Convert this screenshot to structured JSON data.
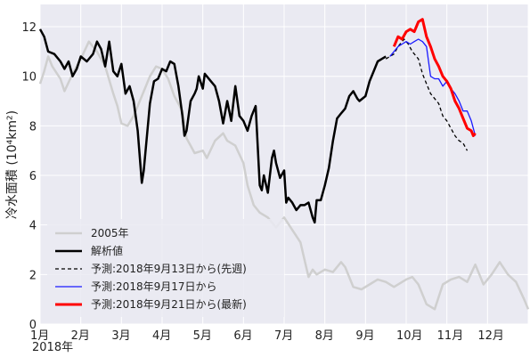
{
  "chart_data": {
    "type": "line",
    "ylabel": "冷水面積 (10⁴km²)",
    "year_label": "2018年",
    "x_ticks": [
      "1月",
      "2月",
      "3月",
      "4月",
      "5月",
      "6月",
      "7月",
      "8月",
      "9月",
      "10月",
      "11月",
      "12月"
    ],
    "y_ticks": [
      "0",
      "2",
      "4",
      "6",
      "8",
      "10",
      "12"
    ],
    "xlim": [
      1,
      13
    ],
    "ylim": [
      0,
      12.9
    ],
    "grid": true,
    "legend_position": "lower-left",
    "series": [
      {
        "name": "2005年",
        "color": "#cfcfcf",
        "style": "solid",
        "width": 2.5,
        "points": [
          [
            1.0,
            9.7
          ],
          [
            1.1,
            10.2
          ],
          [
            1.2,
            10.8
          ],
          [
            1.3,
            10.4
          ],
          [
            1.5,
            9.9
          ],
          [
            1.6,
            9.4
          ],
          [
            1.8,
            10.1
          ],
          [
            2.0,
            10.7
          ],
          [
            2.2,
            11.4
          ],
          [
            2.4,
            11.0
          ],
          [
            2.6,
            10.4
          ],
          [
            2.8,
            9.3
          ],
          [
            2.9,
            8.8
          ],
          [
            3.0,
            8.1
          ],
          [
            3.15,
            8.0
          ],
          [
            3.3,
            8.4
          ],
          [
            3.5,
            9.2
          ],
          [
            3.7,
            10.0
          ],
          [
            3.85,
            10.4
          ],
          [
            4.0,
            10.3
          ],
          [
            4.15,
            9.9
          ],
          [
            4.3,
            9.2
          ],
          [
            4.5,
            8.6
          ],
          [
            4.6,
            7.5
          ],
          [
            4.7,
            7.2
          ],
          [
            4.8,
            6.9
          ],
          [
            5.0,
            7.0
          ],
          [
            5.1,
            6.7
          ],
          [
            5.3,
            7.4
          ],
          [
            5.5,
            7.7
          ],
          [
            5.6,
            7.4
          ],
          [
            5.8,
            7.2
          ],
          [
            6.0,
            6.5
          ],
          [
            6.1,
            5.6
          ],
          [
            6.25,
            4.8
          ],
          [
            6.4,
            4.5
          ],
          [
            6.6,
            4.3
          ],
          [
            6.8,
            3.9
          ],
          [
            7.0,
            4.3
          ],
          [
            7.2,
            3.8
          ],
          [
            7.4,
            3.3
          ],
          [
            7.5,
            2.6
          ],
          [
            7.6,
            1.9
          ],
          [
            7.7,
            2.2
          ],
          [
            7.8,
            2.0
          ],
          [
            8.0,
            2.2
          ],
          [
            8.2,
            2.1
          ],
          [
            8.4,
            2.5
          ],
          [
            8.5,
            2.3
          ],
          [
            8.7,
            1.5
          ],
          [
            8.9,
            1.4
          ],
          [
            9.1,
            1.6
          ],
          [
            9.3,
            1.8
          ],
          [
            9.5,
            1.7
          ],
          [
            9.7,
            1.5
          ],
          [
            10.0,
            1.8
          ],
          [
            10.15,
            1.9
          ],
          [
            10.3,
            1.6
          ],
          [
            10.5,
            0.8
          ],
          [
            10.7,
            0.6
          ],
          [
            10.9,
            1.6
          ],
          [
            11.1,
            1.8
          ],
          [
            11.3,
            1.9
          ],
          [
            11.5,
            1.7
          ],
          [
            11.7,
            2.4
          ],
          [
            11.9,
            1.6
          ],
          [
            12.1,
            2.0
          ],
          [
            12.3,
            2.5
          ],
          [
            12.5,
            2.0
          ],
          [
            12.7,
            1.7
          ],
          [
            12.9,
            1.0
          ],
          [
            13.0,
            0.6
          ]
        ]
      },
      {
        "name": "解析値",
        "color": "#000000",
        "style": "solid",
        "width": 2.5,
        "points": [
          [
            1.0,
            11.9
          ],
          [
            1.1,
            11.6
          ],
          [
            1.2,
            11.0
          ],
          [
            1.35,
            10.9
          ],
          [
            1.5,
            10.6
          ],
          [
            1.6,
            10.3
          ],
          [
            1.7,
            10.6
          ],
          [
            1.8,
            10.0
          ],
          [
            1.9,
            10.3
          ],
          [
            2.0,
            10.8
          ],
          [
            2.15,
            10.6
          ],
          [
            2.3,
            10.9
          ],
          [
            2.4,
            11.4
          ],
          [
            2.5,
            11.1
          ],
          [
            2.6,
            10.4
          ],
          [
            2.7,
            11.4
          ],
          [
            2.8,
            10.2
          ],
          [
            2.9,
            10.0
          ],
          [
            3.0,
            10.5
          ],
          [
            3.1,
            9.3
          ],
          [
            3.2,
            9.6
          ],
          [
            3.3,
            9.0
          ],
          [
            3.4,
            7.8
          ],
          [
            3.5,
            5.7
          ],
          [
            3.55,
            6.2
          ],
          [
            3.7,
            8.9
          ],
          [
            3.8,
            9.8
          ],
          [
            3.9,
            9.9
          ],
          [
            4.0,
            10.3
          ],
          [
            4.1,
            10.2
          ],
          [
            4.2,
            10.6
          ],
          [
            4.3,
            10.5
          ],
          [
            4.4,
            9.6
          ],
          [
            4.5,
            8.4
          ],
          [
            4.55,
            7.6
          ],
          [
            4.6,
            7.8
          ],
          [
            4.7,
            9.0
          ],
          [
            4.8,
            9.3
          ],
          [
            4.85,
            9.5
          ],
          [
            4.9,
            10.0
          ],
          [
            5.0,
            9.5
          ],
          [
            5.05,
            10.1
          ],
          [
            5.2,
            9.8
          ],
          [
            5.3,
            9.6
          ],
          [
            5.4,
            9.0
          ],
          [
            5.5,
            8.1
          ],
          [
            5.6,
            9.0
          ],
          [
            5.7,
            8.2
          ],
          [
            5.8,
            9.6
          ],
          [
            5.9,
            8.4
          ],
          [
            6.0,
            8.2
          ],
          [
            6.1,
            7.8
          ],
          [
            6.2,
            8.4
          ],
          [
            6.3,
            8.8
          ],
          [
            6.4,
            5.6
          ],
          [
            6.45,
            5.4
          ],
          [
            6.5,
            6.0
          ],
          [
            6.6,
            5.3
          ],
          [
            6.7,
            6.7
          ],
          [
            6.75,
            7.0
          ],
          [
            6.8,
            6.5
          ],
          [
            6.9,
            5.9
          ],
          [
            7.0,
            6.2
          ],
          [
            7.05,
            4.9
          ],
          [
            7.1,
            5.1
          ],
          [
            7.2,
            4.9
          ],
          [
            7.3,
            4.6
          ],
          [
            7.4,
            4.8
          ],
          [
            7.5,
            4.8
          ],
          [
            7.6,
            4.9
          ],
          [
            7.7,
            4.3
          ],
          [
            7.75,
            4.1
          ],
          [
            7.8,
            5.0
          ],
          [
            7.9,
            5.0
          ],
          [
            8.0,
            5.6
          ],
          [
            8.1,
            6.3
          ],
          [
            8.2,
            7.4
          ],
          [
            8.3,
            8.3
          ],
          [
            8.4,
            8.5
          ],
          [
            8.5,
            8.7
          ],
          [
            8.6,
            9.2
          ],
          [
            8.7,
            9.4
          ],
          [
            8.8,
            9.1
          ],
          [
            8.85,
            9.0
          ],
          [
            9.0,
            9.2
          ],
          [
            9.1,
            9.8
          ],
          [
            9.2,
            10.2
          ],
          [
            9.3,
            10.6
          ],
          [
            9.4,
            10.7
          ],
          [
            9.5,
            10.8
          ]
        ]
      },
      {
        "name": "予測:2018年9月13日から(先週)",
        "color": "#000000",
        "style": "dashed",
        "width": 1.3,
        "points": [
          [
            9.5,
            10.7
          ],
          [
            9.6,
            10.8
          ],
          [
            9.7,
            10.9
          ],
          [
            9.8,
            11.2
          ],
          [
            9.95,
            11.5
          ],
          [
            10.05,
            11.3
          ],
          [
            10.15,
            11.0
          ],
          [
            10.3,
            10.7
          ],
          [
            10.4,
            10.1
          ],
          [
            10.5,
            9.7
          ],
          [
            10.6,
            9.3
          ],
          [
            10.8,
            8.9
          ],
          [
            10.9,
            8.4
          ],
          [
            11.0,
            8.2
          ],
          [
            11.1,
            7.9
          ],
          [
            11.2,
            7.6
          ],
          [
            11.3,
            7.4
          ],
          [
            11.4,
            7.3
          ],
          [
            11.5,
            7.0
          ]
        ]
      },
      {
        "name": "予測:2018年9月17日から",
        "color": "#1a1aff",
        "style": "solid",
        "width": 1.3,
        "points": [
          [
            9.6,
            10.8
          ],
          [
            9.7,
            11.0
          ],
          [
            9.8,
            11.2
          ],
          [
            9.9,
            11.3
          ],
          [
            10.0,
            11.4
          ],
          [
            10.1,
            11.3
          ],
          [
            10.2,
            11.4
          ],
          [
            10.3,
            11.5
          ],
          [
            10.4,
            11.4
          ],
          [
            10.5,
            11.2
          ],
          [
            10.6,
            10.0
          ],
          [
            10.7,
            9.9
          ],
          [
            10.8,
            9.9
          ],
          [
            10.9,
            9.6
          ],
          [
            11.0,
            9.8
          ],
          [
            11.1,
            9.5
          ],
          [
            11.2,
            9.3
          ],
          [
            11.3,
            9.0
          ],
          [
            11.4,
            8.6
          ],
          [
            11.5,
            8.6
          ],
          [
            11.6,
            8.2
          ],
          [
            11.7,
            7.6
          ]
        ]
      },
      {
        "name": "予測:2018年9月21日から(最新)",
        "color": "#ff0000",
        "style": "solid",
        "width": 3,
        "points": [
          [
            9.7,
            11.2
          ],
          [
            9.8,
            11.6
          ],
          [
            9.9,
            11.5
          ],
          [
            10.0,
            11.8
          ],
          [
            10.1,
            11.9
          ],
          [
            10.2,
            11.8
          ],
          [
            10.3,
            12.2
          ],
          [
            10.4,
            12.3
          ],
          [
            10.5,
            11.6
          ],
          [
            10.6,
            11.2
          ],
          [
            10.7,
            10.7
          ],
          [
            10.8,
            10.4
          ],
          [
            10.9,
            10.0
          ],
          [
            11.0,
            9.8
          ],
          [
            11.1,
            9.5
          ],
          [
            11.2,
            9.0
          ],
          [
            11.3,
            8.7
          ],
          [
            11.4,
            8.3
          ],
          [
            11.5,
            7.9
          ],
          [
            11.6,
            7.8
          ],
          [
            11.65,
            7.6
          ],
          [
            11.7,
            7.7
          ]
        ]
      }
    ]
  }
}
